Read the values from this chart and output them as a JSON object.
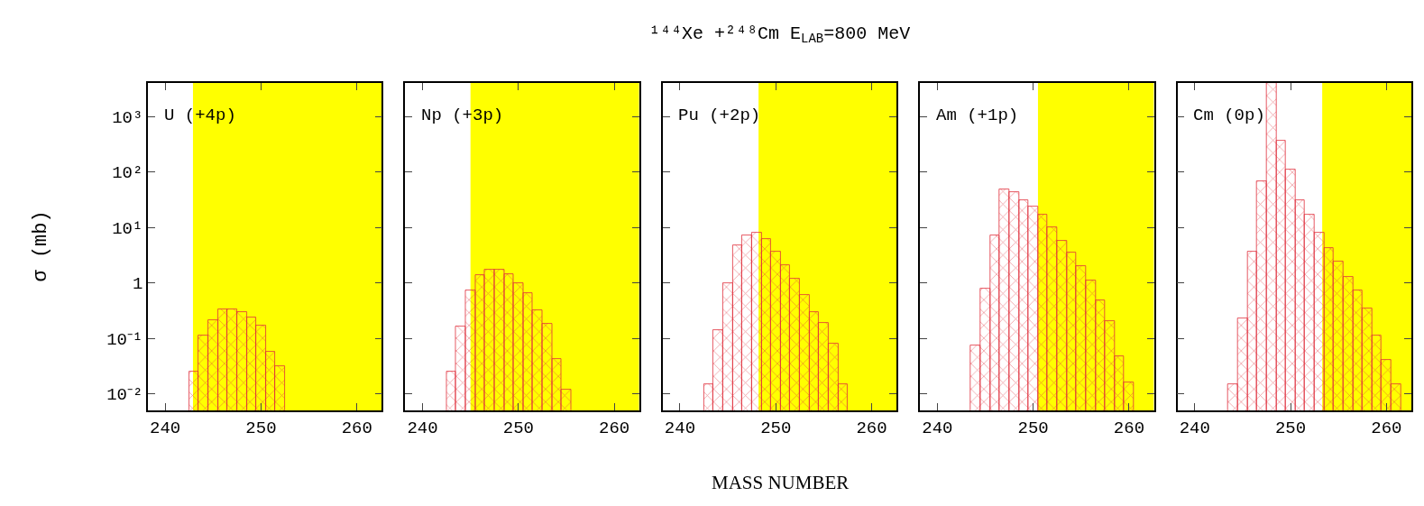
{
  "chart_data": [
    {
      "type": "histogram",
      "ylabel": "σ (mb)",
      "annotations": [
        "U (+4p)"
      ],
      "color": "#e0303c",
      "log": true,
      "tick_labels": true,
      "bins": [
        242.5,
        243.5,
        244.5,
        245.5,
        246.5,
        247.5,
        248.5,
        249.5,
        250.5,
        251.5,
        252.5
      ],
      "values": [
        0.025,
        0.11,
        0.21,
        0.33,
        0.33,
        0.3,
        0.24,
        0.17,
        0.056,
        0.031
      ],
      "bands": [
        {
          "axis": "x",
          "from": 242.9,
          "to": 262.6,
          "color": "#ffff00"
        }
      ],
      "xlim": [
        238.2,
        262.6
      ],
      "xticks": [
        240,
        250,
        260
      ],
      "ylim": [
        0.005,
        4000
      ],
      "yticks": [
        {
          "value": 0.01,
          "label": "10⁻²"
        },
        {
          "value": 0.1,
          "label": "10⁻¹"
        },
        1,
        {
          "value": 10,
          "label": "10¹"
        },
        {
          "value": 100,
          "label": "10²"
        },
        {
          "value": 1000,
          "label": "10³"
        }
      ]
    },
    {
      "type": "histogram",
      "annotations": [
        "Np (+3p)"
      ],
      "color": "#e0303c",
      "log": true,
      "tick_labels": "x",
      "bins": [
        242.5,
        243.5,
        244.5,
        245.5,
        246.5,
        247.5,
        248.5,
        249.5,
        250.5,
        251.5,
        252.5,
        253.5,
        254.5,
        255.5
      ],
      "values": [
        0.025,
        0.16,
        0.72,
        1.35,
        1.7,
        1.7,
        1.45,
        1.0,
        0.64,
        0.32,
        0.18,
        0.042,
        0.012
      ],
      "bands": [
        {
          "axis": "x",
          "from": 245.0,
          "to": 262.6,
          "color": "#ffff00"
        }
      ],
      "xlim": [
        238.2,
        262.6
      ],
      "xticks": [
        240,
        250,
        260
      ],
      "ylim": [
        0.005,
        4000
      ],
      "yticks": [
        {
          "value": 0.01,
          "label": null
        },
        {
          "value": 0.1,
          "label": null
        },
        {
          "value": 1,
          "label": null
        },
        {
          "value": 10,
          "label": null
        },
        {
          "value": 100,
          "label": null
        },
        {
          "value": 1000,
          "label": null
        }
      ]
    },
    {
      "type": "histogram",
      "title": "¹⁴⁴Xe +²⁴⁸Cm E$_{LAB}$=800 MeV",
      "xlabel": "MASS NUMBER",
      "annotations": [
        "Pu (+2p)"
      ],
      "color": "#e0303c",
      "log": true,
      "tick_labels": "x",
      "bins": [
        242.5,
        243.5,
        244.5,
        245.5,
        246.5,
        247.5,
        248.5,
        249.5,
        250.5,
        251.5,
        252.5,
        253.5,
        254.5,
        255.5,
        256.5,
        257.5
      ],
      "values": [
        0.015,
        0.14,
        1.0,
        4.8,
        7.1,
        8.1,
        6.1,
        3.7,
        2.1,
        1.2,
        0.6,
        0.3,
        0.19,
        0.08,
        0.015
      ],
      "bands": [
        {
          "axis": "x",
          "from": 248.2,
          "to": 262.6,
          "color": "#ffff00"
        }
      ],
      "xlim": [
        238.2,
        262.6
      ],
      "xticks": [
        240,
        250,
        260
      ],
      "ylim": [
        0.005,
        4000
      ],
      "yticks": [
        {
          "value": 0.01,
          "label": null
        },
        {
          "value": 0.1,
          "label": null
        },
        {
          "value": 1,
          "label": null
        },
        {
          "value": 10,
          "label": null
        },
        {
          "value": 100,
          "label": null
        },
        {
          "value": 1000,
          "label": null
        }
      ]
    },
    {
      "type": "histogram",
      "annotations": [
        "Am (+1p)"
      ],
      "color": "#e0303c",
      "log": true,
      "tick_labels": "x",
      "bins": [
        243.5,
        244.5,
        245.5,
        246.5,
        247.5,
        248.5,
        249.5,
        250.5,
        251.5,
        252.5,
        253.5,
        254.5,
        255.5,
        256.5,
        257.5,
        258.5,
        259.5,
        260.5
      ],
      "values": [
        0.073,
        0.77,
        7.1,
        49,
        43,
        31,
        24,
        17,
        10,
        5.7,
        3.5,
        2.0,
        1.1,
        0.49,
        0.2,
        0.048,
        0.016
      ],
      "bands": [
        {
          "axis": "x",
          "from": 250.5,
          "to": 262.6,
          "color": "#ffff00"
        }
      ],
      "xlim": [
        238.2,
        262.6
      ],
      "xticks": [
        240,
        250,
        260
      ],
      "ylim": [
        0.005,
        4000
      ],
      "yticks": [
        {
          "value": 0.01,
          "label": null
        },
        {
          "value": 0.1,
          "label": null
        },
        {
          "value": 1,
          "label": null
        },
        {
          "value": 10,
          "label": null
        },
        {
          "value": 100,
          "label": null
        },
        {
          "value": 1000,
          "label": null
        }
      ]
    },
    {
      "type": "histogram",
      "annotations": [
        "Cm (0p)"
      ],
      "color": "#e0303c",
      "log": true,
      "tick_labels": "x",
      "bins": [
        243.5,
        244.5,
        245.5,
        246.5,
        247.5,
        248.5,
        249.5,
        250.5,
        251.5,
        252.5,
        253.5,
        254.5,
        255.5,
        256.5,
        257.5,
        258.5,
        259.5,
        260.5,
        261.5
      ],
      "values": [
        0.015,
        0.23,
        3.7,
        67,
        4000,
        360,
        110,
        31,
        17,
        8,
        4.2,
        2.4,
        1.3,
        0.72,
        0.34,
        0.11,
        0.04,
        0.015
      ],
      "bands": [
        {
          "axis": "x",
          "from": 253.3,
          "to": 262.6,
          "color": "#ffff00"
        }
      ],
      "xlim": [
        238.2,
        262.6
      ],
      "xticks": [
        240,
        250,
        260
      ],
      "ylim": [
        0.005,
        4000
      ],
      "yticks": [
        {
          "value": 0.01,
          "label": null
        },
        {
          "value": 0.1,
          "label": null
        },
        {
          "value": 1,
          "label": null
        },
        {
          "value": 10,
          "label": null
        },
        {
          "value": 100,
          "label": null
        },
        {
          "value": 1000,
          "label": null
        }
      ]
    }
  ]
}
